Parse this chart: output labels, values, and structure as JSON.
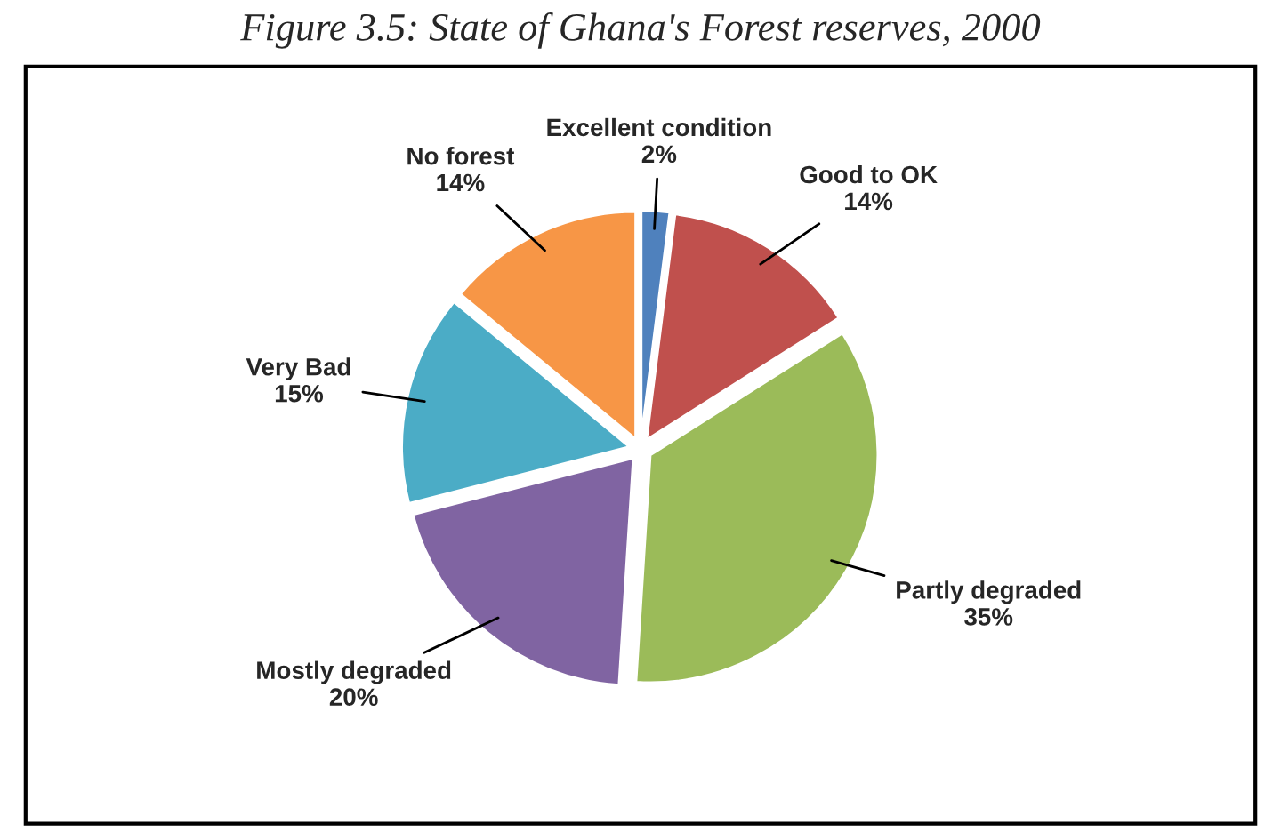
{
  "chart_data": {
    "type": "pie",
    "title": "Figure 3.5: State of Ghana's Forest reserves, 2000",
    "categories": [
      "Excellent condition",
      "Good to OK",
      "Partly degraded",
      "Mostly degraded",
      "Very Bad",
      "No forest"
    ],
    "values": [
      2,
      14,
      35,
      20,
      15,
      14
    ],
    "value_labels": [
      "2%",
      "14%",
      "35%",
      "20%",
      "15%",
      "14%"
    ],
    "colors": [
      "#4f81bd",
      "#c0504d",
      "#9bbb59",
      "#8064a2",
      "#4bacc6",
      "#f79646"
    ],
    "legend": false
  }
}
